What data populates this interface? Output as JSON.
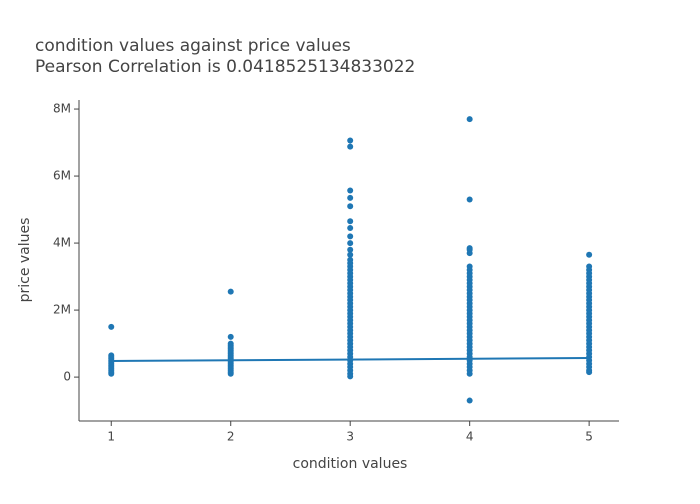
{
  "chart_data": {
    "type": "scatter",
    "title": "condition values against price values",
    "subtitle": "Pearson Correlation is 0.0418525134833022",
    "x_label": "condition values",
    "y_label": "price values",
    "color": "#1f77b4",
    "xlim": [
      0.73,
      5.25
    ],
    "xticks": [
      1,
      2,
      3,
      4,
      5
    ],
    "ylim": [
      -1310000,
      8270000
    ],
    "yticks": [
      0,
      {
        "value": 2000000,
        "label": "2M"
      },
      {
        "value": 4000000,
        "label": "4M"
      },
      {
        "value": 6000000,
        "label": "6M"
      },
      {
        "value": 8000000,
        "label": "8M"
      }
    ],
    "groups": [
      {
        "x": 1,
        "y": [
          1500000,
          650000,
          600000,
          550000,
          500000,
          450000,
          400000,
          350000,
          300000,
          250000,
          200000,
          150000,
          100000
        ]
      },
      {
        "x": 2,
        "y": [
          2550000,
          1200000,
          1000000,
          950000,
          900000,
          850000,
          800000,
          750000,
          700000,
          650000,
          600000,
          550000,
          500000,
          450000,
          400000,
          350000,
          300000,
          250000,
          200000,
          150000,
          100000
        ]
      },
      {
        "x": 3,
        "y": [
          7060000,
          6880000,
          5570000,
          5350000,
          5100000,
          4650000,
          4450000,
          4200000,
          4000000,
          3800000,
          3650000,
          3500000,
          3400000,
          3300000,
          3200000,
          3100000,
          3000000,
          2900000,
          2800000,
          2700000,
          2600000,
          2500000,
          2400000,
          2300000,
          2200000,
          2100000,
          2000000,
          1900000,
          1800000,
          1700000,
          1600000,
          1500000,
          1400000,
          1300000,
          1200000,
          1100000,
          1000000,
          900000,
          800000,
          700000,
          600000,
          500000,
          400000,
          300000,
          200000,
          100000,
          20000
        ]
      },
      {
        "x": 4,
        "y": [
          7700000,
          5300000,
          3850000,
          3800000,
          3700000,
          3300000,
          3200000,
          3100000,
          3000000,
          2900000,
          2800000,
          2700000,
          2600000,
          2500000,
          2400000,
          2300000,
          2200000,
          2100000,
          2000000,
          1900000,
          1800000,
          1700000,
          1600000,
          1500000,
          1400000,
          1300000,
          1200000,
          1100000,
          1000000,
          900000,
          800000,
          700000,
          600000,
          500000,
          400000,
          300000,
          200000,
          100000,
          -700000
        ]
      },
      {
        "x": 5,
        "y": [
          3650000,
          3300000,
          3200000,
          3100000,
          3000000,
          2900000,
          2800000,
          2700000,
          2600000,
          2500000,
          2400000,
          2300000,
          2200000,
          2100000,
          2000000,
          1900000,
          1800000,
          1700000,
          1600000,
          1500000,
          1400000,
          1300000,
          1200000,
          1100000,
          1000000,
          900000,
          800000,
          700000,
          600000,
          500000,
          400000,
          300000,
          200000,
          150000
        ]
      }
    ],
    "trendline": {
      "x": [
        1,
        5
      ],
      "y": [
        480000,
        570000
      ]
    }
  }
}
